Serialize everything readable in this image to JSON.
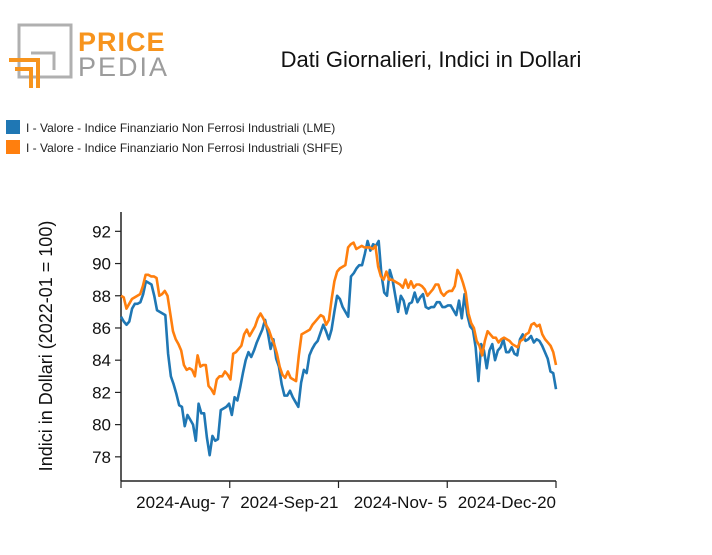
{
  "logo": {
    "word_a": "PRICE",
    "word_b": "PEDIA",
    "color_a": "#f7941d",
    "color_b": "#9c9c9c"
  },
  "chart_data": {
    "type": "line",
    "title": "Dati Giornalieri, Indici in Dollari",
    "xlabel": "",
    "ylabel": "Indici in Dollari (2022-01 = 100)",
    "ylim": [
      76.5,
      93.2
    ],
    "yticks": [
      78,
      80,
      82,
      84,
      86,
      88,
      90,
      92
    ],
    "xticks": [
      "2024-Aug- 7",
      "2024-Sep-21",
      "2024-Nov- 5",
      "2024-Dec-20"
    ],
    "grid": false,
    "legend_position": "top-left",
    "series": [
      {
        "name": "I - Valore - Indice Finanziario Non Ferrosi Industriali (LME)",
        "color": "#1f77b4",
        "values": [
          86.7,
          86.4,
          86.2,
          86.4,
          87.2,
          87.5,
          87.5,
          87.6,
          88.1,
          88.9,
          88.8,
          88.7,
          88.0,
          87.1,
          87.0,
          86.9,
          86.8,
          84.4,
          83.0,
          82.5,
          81.9,
          81.2,
          81.1,
          79.9,
          80.6,
          80.3,
          80.0,
          79.0,
          81.3,
          80.7,
          80.7,
          79.2,
          78.1,
          79.3,
          79.0,
          79.1,
          80.9,
          81.0,
          81.1,
          81.3,
          80.6,
          81.7,
          81.5,
          82.3,
          83.2,
          84.0,
          84.5,
          84.2,
          84.6,
          85.1,
          85.5,
          85.9,
          86.5,
          85.7,
          84.7,
          85.3,
          84.1,
          83.6,
          82.5,
          81.8,
          81.8,
          82.1,
          81.7,
          81.4,
          81.1,
          82.6,
          83.4,
          83.2,
          84.3,
          84.7,
          85.0,
          85.2,
          85.7,
          86.2,
          85.8,
          85.3,
          85.9,
          87.0,
          88.0,
          87.8,
          87.3,
          87.0,
          86.7,
          89.2,
          89.4,
          89.7,
          89.9,
          89.9,
          90.6,
          91.4,
          90.8,
          91.2,
          91.1,
          91.4,
          89.3,
          88.2,
          88.0,
          89.6,
          89.0,
          88.0,
          87.0,
          88.0,
          87.7,
          86.9,
          87.5,
          87.6,
          88.2,
          87.6,
          87.9,
          88.1,
          87.3,
          87.2,
          87.3,
          87.3,
          87.6,
          87.6,
          87.3,
          87.3,
          87.4,
          87.4,
          87.1,
          86.8,
          87.7,
          86.6,
          88.1,
          86.8,
          86.1,
          85.9,
          84.8,
          82.7,
          85.0,
          84.6,
          83.5,
          84.6,
          85.0,
          84.0,
          84.6,
          84.8,
          85.3,
          84.5,
          84.5,
          84.8,
          84.4,
          84.3,
          85.3,
          85.6,
          85.2,
          85.3,
          85.5,
          85.1,
          85.3,
          85.2,
          84.9,
          84.5,
          84.1,
          83.3,
          83.2,
          82.2
        ]
      },
      {
        "name": "I - Valore - Indice Finanziario Non Ferrosi Industriali (SHFE)",
        "color": "#ff7f0e",
        "values": [
          88.0,
          87.9,
          87.2,
          87.5,
          87.8,
          87.9,
          88.0,
          88.1,
          88.6,
          89.3,
          89.3,
          89.2,
          89.2,
          89.1,
          88.0,
          88.1,
          88.3,
          88.0,
          86.9,
          85.8,
          85.3,
          85.0,
          84.6,
          83.7,
          83.4,
          83.5,
          83.4,
          83.0,
          84.3,
          83.6,
          83.7,
          83.7,
          82.4,
          82.2,
          81.9,
          82.8,
          83.0,
          83.0,
          83.3,
          83.1,
          82.8,
          84.4,
          84.5,
          84.7,
          84.9,
          85.6,
          85.9,
          85.5,
          85.8,
          86.1,
          86.6,
          86.9,
          86.6,
          86.2,
          85.9,
          85.4,
          85.0,
          84.4,
          83.6,
          83.1,
          82.9,
          83.3,
          82.9,
          82.8,
          82.7,
          84.3,
          85.6,
          85.7,
          85.8,
          85.9,
          86.2,
          86.4,
          86.6,
          86.8,
          86.7,
          86.2,
          86.5,
          87.8,
          88.9,
          89.5,
          89.7,
          89.8,
          89.9,
          91.0,
          91.2,
          91.3,
          90.9,
          91.0,
          91.1,
          91.0,
          91.0,
          91.0,
          90.9,
          91.1,
          89.8,
          89.2,
          89.0,
          89.5,
          89.0,
          89.0,
          88.9,
          88.8,
          88.7,
          88.5,
          89.0,
          88.5,
          88.9,
          88.5,
          88.7,
          88.7,
          88.6,
          88.4,
          88.0,
          88.2,
          88.4,
          88.7,
          88.7,
          88.2,
          88.0,
          88.2,
          88.3,
          88.3,
          88.6,
          89.6,
          89.3,
          88.8,
          88.2,
          86.9,
          86.3,
          86.0,
          85.2,
          84.9,
          84.3,
          85.2,
          85.8,
          85.6,
          85.4,
          85.4,
          85.1,
          85.3,
          85.4,
          85.3,
          85.2,
          85.0,
          84.9,
          84.8,
          85.2,
          85.3,
          85.6,
          85.7,
          86.2,
          86.3,
          86.1,
          86.2,
          85.6,
          85.3,
          85.1,
          84.9,
          84.5,
          83.7
        ]
      }
    ]
  }
}
